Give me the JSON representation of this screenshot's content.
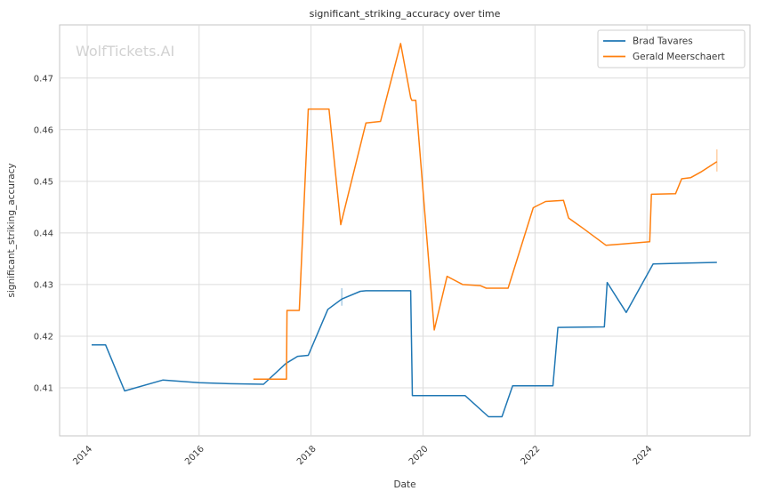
{
  "watermark": "WolfTickets.AI",
  "chart_data": {
    "type": "line",
    "title": "significant_striking_accuracy over time",
    "xlabel": "Date",
    "ylabel": "significant_striking_accuracy",
    "grid": true,
    "legend_position": "upper right",
    "xlim": [
      2013.508,
      2025.841
    ],
    "ylim": [
      0.4007,
      0.4803
    ],
    "x_ticks": [
      2014,
      2016,
      2018,
      2020,
      2022,
      2024
    ],
    "x_tick_labels": [
      "2014",
      "2016",
      "2018",
      "2020",
      "2022",
      "2024"
    ],
    "y_ticks": [
      0.41,
      0.42,
      0.43,
      0.44,
      0.45,
      0.46,
      0.47
    ],
    "y_tick_labels": [
      "0.41",
      "0.42",
      "0.43",
      "0.44",
      "0.45",
      "0.46",
      "0.47"
    ],
    "series": [
      {
        "name": "Brad Tavares",
        "color": "#1f77b4",
        "points": [
          [
            2014.08,
            0.4183
          ],
          [
            2014.33,
            0.4183
          ],
          [
            2014.67,
            0.4094
          ],
          [
            2015.35,
            0.4115
          ],
          [
            2016.0,
            0.411
          ],
          [
            2016.55,
            0.4108
          ],
          [
            2017.15,
            0.4107
          ],
          [
            2017.55,
            0.4147
          ],
          [
            2017.76,
            0.4161
          ],
          [
            2017.95,
            0.4163
          ],
          [
            2018.3,
            0.4252
          ],
          [
            2018.55,
            0.4272
          ],
          [
            2018.88,
            0.4287
          ],
          [
            2018.98,
            0.4288
          ],
          [
            2019.78,
            0.4288
          ],
          [
            2019.81,
            0.4085
          ],
          [
            2020.75,
            0.4085
          ],
          [
            2021.17,
            0.4044
          ],
          [
            2021.41,
            0.4044
          ],
          [
            2021.6,
            0.4104
          ],
          [
            2022.32,
            0.4104
          ],
          [
            2022.41,
            0.4217
          ],
          [
            2023.24,
            0.4218
          ],
          [
            2023.29,
            0.4304
          ],
          [
            2023.63,
            0.4246
          ],
          [
            2024.11,
            0.434
          ],
          [
            2025.25,
            0.4343
          ]
        ]
      },
      {
        "name": "Gerald Meerschaert",
        "color": "#ff7f0e",
        "points": [
          [
            2016.97,
            0.4117
          ],
          [
            2017.56,
            0.4117
          ],
          [
            2017.57,
            0.425
          ],
          [
            2017.79,
            0.425
          ],
          [
            2017.95,
            0.464
          ],
          [
            2018.32,
            0.464
          ],
          [
            2018.53,
            0.4416
          ],
          [
            2018.98,
            0.4613
          ],
          [
            2019.24,
            0.4616
          ],
          [
            2019.6,
            0.4767
          ],
          [
            2019.78,
            0.4662
          ],
          [
            2019.8,
            0.4657
          ],
          [
            2019.87,
            0.4657
          ],
          [
            2020.2,
            0.4212
          ],
          [
            2020.43,
            0.4316
          ],
          [
            2020.71,
            0.43
          ],
          [
            2021.02,
            0.4298
          ],
          [
            2021.13,
            0.4293
          ],
          [
            2021.52,
            0.4293
          ],
          [
            2021.97,
            0.4449
          ],
          [
            2022.19,
            0.4461
          ],
          [
            2022.51,
            0.4463
          ],
          [
            2022.6,
            0.4429
          ],
          [
            2022.86,
            0.4409
          ],
          [
            2023.27,
            0.4376
          ],
          [
            2023.6,
            0.4379
          ],
          [
            2024.05,
            0.4383
          ],
          [
            2024.08,
            0.4475
          ],
          [
            2024.51,
            0.4476
          ],
          [
            2024.62,
            0.4505
          ],
          [
            2024.78,
            0.4507
          ],
          [
            2024.98,
            0.4519
          ],
          [
            2025.25,
            0.4538
          ]
        ]
      }
    ],
    "error_bars": [
      {
        "series": "Brad Tavares",
        "x": 2018.55,
        "y_low": 0.4259,
        "y_high": 0.4293,
        "color": "#1f77b4"
      },
      {
        "series": "Gerald Meerschaert",
        "x": 2025.25,
        "y_low": 0.4519,
        "y_high": 0.4562,
        "color": "#ff7f0e"
      }
    ]
  },
  "colors": {
    "background": "#ffffff",
    "gridline": "#dcdcdc",
    "spine": "#c6c6c6",
    "text": "#3a3a3a",
    "watermark": "#d2d2d2",
    "series_blue": "#1f77b4",
    "series_orange": "#ff7f0e"
  }
}
